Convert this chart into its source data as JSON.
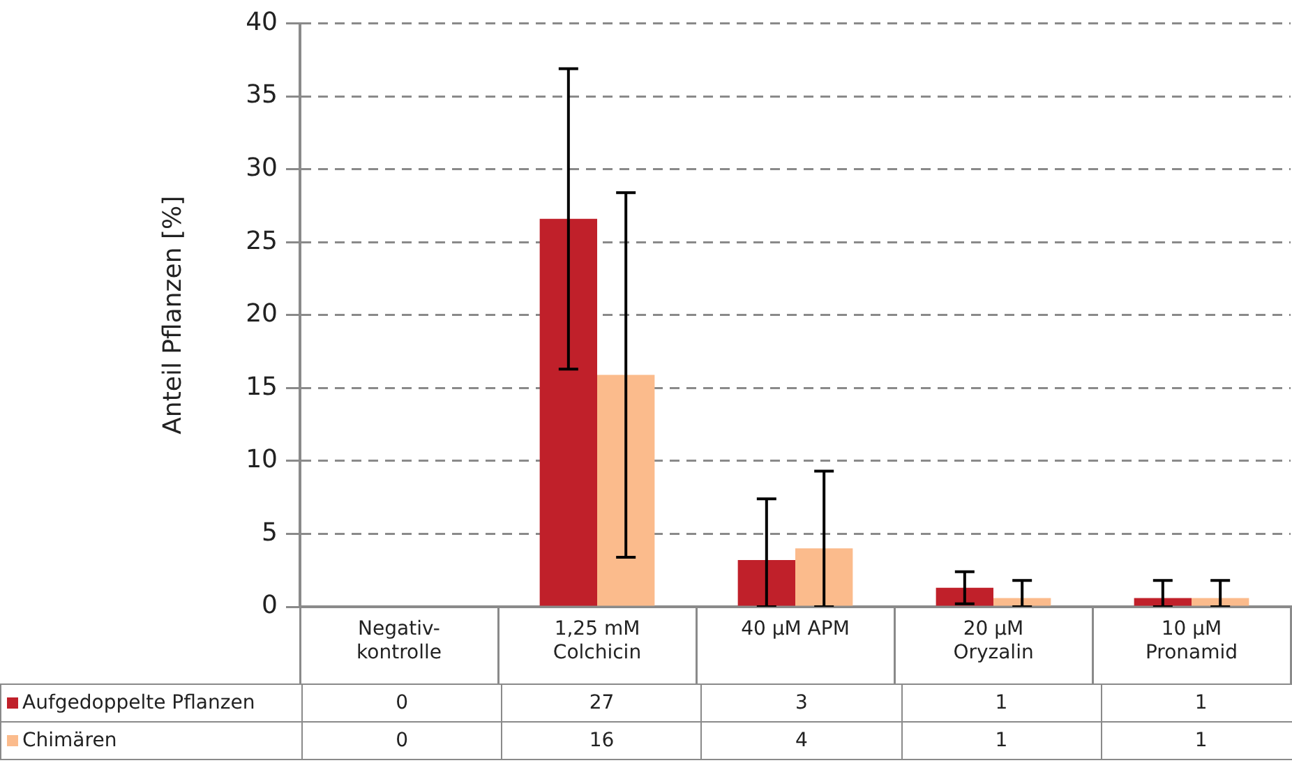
{
  "chart_data": {
    "type": "bar",
    "ylabel": "Anteil Pflanzen [%]",
    "categories": [
      "Negativ-\nkontrolle",
      "1,25 mM\nColchicin",
      "40 µM APM",
      "20 µM\nOryzalin",
      "10 µM\nPronamid"
    ],
    "series": [
      {
        "name": "Aufgedoppelte Pflanzen",
        "color": "#c0202a",
        "values": [
          0,
          26.6,
          3.2,
          1.3,
          0.6
        ],
        "errors": [
          null,
          10.3,
          [
            0,
            7.4
          ],
          1.1,
          [
            0,
            1.8
          ]
        ],
        "value_labels": [
          "0",
          "27",
          "3",
          "1",
          "1"
        ]
      },
      {
        "name": "Chimären",
        "color": "#fbbb8c",
        "values": [
          0,
          15.9,
          4.0,
          0.6,
          0.6
        ],
        "errors": [
          null,
          12.5,
          [
            0,
            9.3
          ],
          [
            0,
            1.8
          ],
          [
            0,
            1.8
          ]
        ],
        "value_labels": [
          "0",
          "16",
          "4",
          "1",
          "1"
        ]
      }
    ],
    "ylim": [
      0,
      40
    ],
    "yticks": [
      0,
      5,
      10,
      15,
      20,
      25,
      30,
      35,
      40
    ],
    "grid": "y",
    "legend": "bottom"
  }
}
